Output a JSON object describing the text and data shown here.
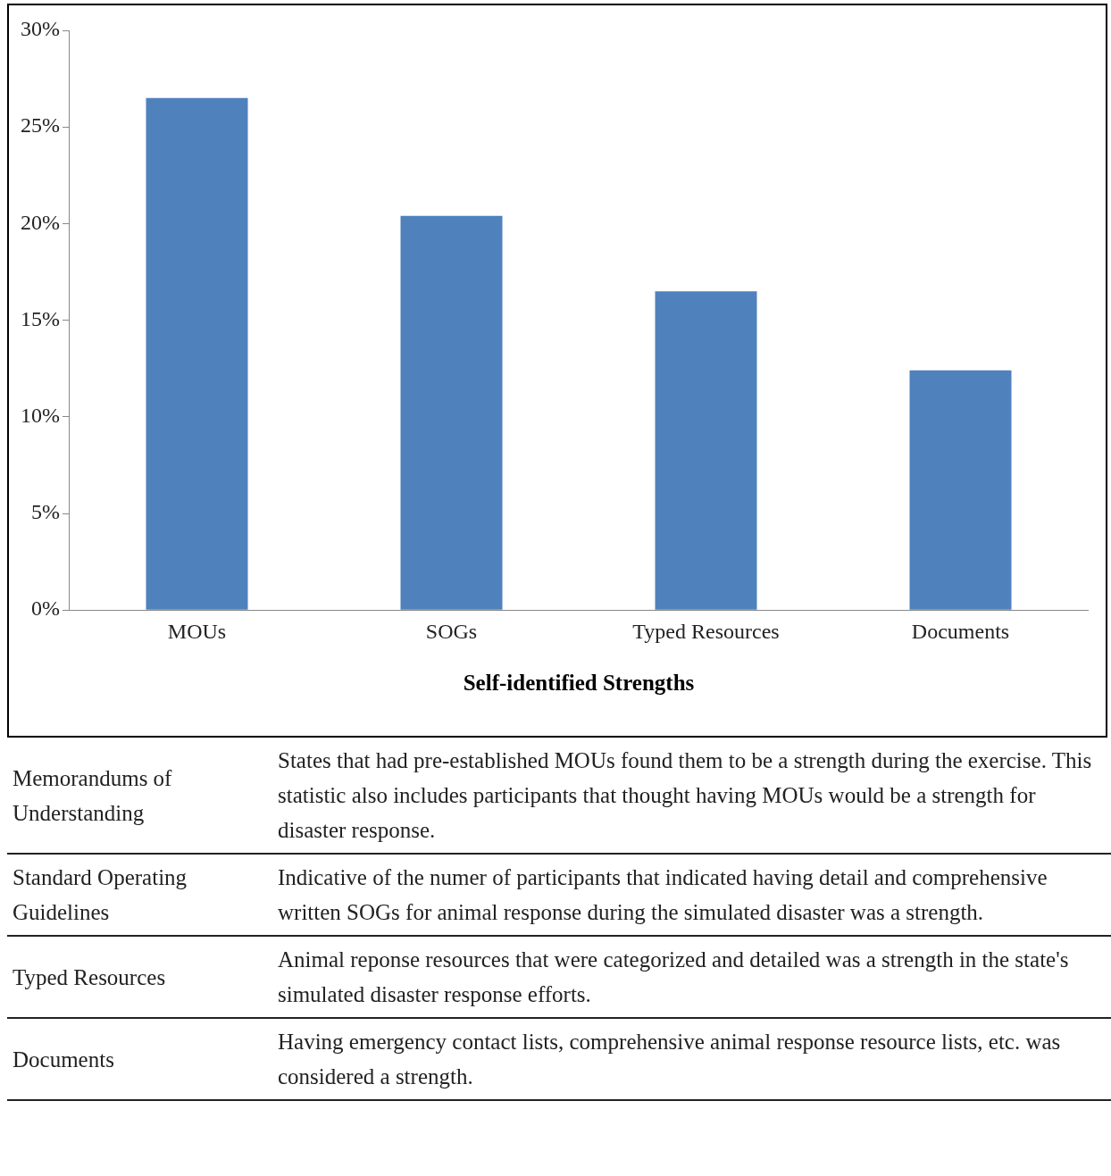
{
  "chart_data": {
    "type": "bar",
    "xlabel": "Self-identified Strengths",
    "categories": [
      "MOUs",
      "SOGs",
      "Typed Resources",
      "Documents"
    ],
    "values": [
      26.5,
      20.4,
      16.5,
      12.4
    ],
    "color": "#4f81bd",
    "ylim": [
      0,
      30
    ],
    "yticks": [
      {
        "value": 0,
        "label": "0%"
      },
      {
        "value": 5,
        "label": "5%"
      },
      {
        "value": 10,
        "label": "10%"
      },
      {
        "value": 15,
        "label": "15%"
      },
      {
        "value": 20,
        "label": "20%"
      },
      {
        "value": 25,
        "label": "25%"
      },
      {
        "value": 30,
        "label": "30%"
      }
    ],
    "grid": false,
    "legend": false,
    "annotations": [
      "Memorandums of Understanding",
      "States that had pre-established MOUs found them to be a strength during the exercise.  This statistic also includes participants that thought having MOUs would be a strength for disaster response.",
      "Standard Operating Guidelines",
      "Indicative of the numer of participants that indicated having detail and comprehensive written SOGs for animal response during the simulated disaster was a strength.",
      "Typed Resources",
      "Animal reponse resources that were categorized and detailed was a strength in the state's simulated disaster response efforts.",
      "Documents",
      "Having emergency contact lists, comprehensive animal response resource lists, etc. was considered a strength."
    ]
  }
}
